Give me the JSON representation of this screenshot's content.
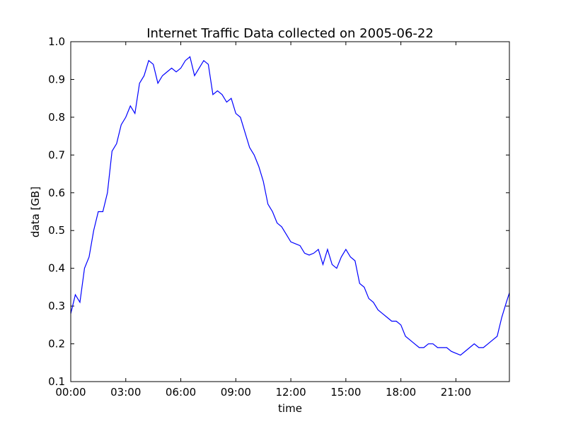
{
  "chart_data": {
    "type": "line",
    "title": "Internet Traffic Data collected on 2005-06-22",
    "xlabel": "time",
    "ylabel": "data [GB]",
    "x": [
      "00:00",
      "00:15",
      "00:30",
      "00:45",
      "01:00",
      "01:15",
      "01:30",
      "01:45",
      "02:00",
      "02:15",
      "02:30",
      "02:45",
      "03:00",
      "03:15",
      "03:30",
      "03:45",
      "04:00",
      "04:15",
      "04:30",
      "04:45",
      "05:00",
      "05:15",
      "05:30",
      "05:45",
      "06:00",
      "06:15",
      "06:30",
      "06:45",
      "07:00",
      "07:15",
      "07:30",
      "07:45",
      "08:00",
      "08:15",
      "08:30",
      "08:45",
      "09:00",
      "09:15",
      "09:30",
      "09:45",
      "10:00",
      "10:15",
      "10:30",
      "10:45",
      "11:00",
      "11:15",
      "11:30",
      "11:45",
      "12:00",
      "12:15",
      "12:30",
      "12:45",
      "13:00",
      "13:15",
      "13:30",
      "13:45",
      "14:00",
      "14:15",
      "14:30",
      "14:45",
      "15:00",
      "15:15",
      "15:30",
      "15:45",
      "16:00",
      "16:15",
      "16:30",
      "16:45",
      "17:00",
      "17:15",
      "17:30",
      "17:45",
      "18:00",
      "18:15",
      "18:30",
      "18:45",
      "19:00",
      "19:15",
      "19:30",
      "19:45",
      "20:00",
      "20:15",
      "20:30",
      "20:45",
      "21:00",
      "21:15",
      "21:30",
      "21:45",
      "22:00",
      "22:15",
      "22:30",
      "22:45",
      "23:00",
      "23:15",
      "23:30",
      "23:45",
      "23:55"
    ],
    "values": [
      0.28,
      0.33,
      0.31,
      0.4,
      0.43,
      0.5,
      0.55,
      0.55,
      0.6,
      0.71,
      0.73,
      0.78,
      0.8,
      0.83,
      0.81,
      0.89,
      0.91,
      0.95,
      0.94,
      0.89,
      0.91,
      0.92,
      0.93,
      0.92,
      0.93,
      0.95,
      0.96,
      0.91,
      0.93,
      0.95,
      0.94,
      0.86,
      0.87,
      0.86,
      0.84,
      0.85,
      0.81,
      0.8,
      0.76,
      0.72,
      0.7,
      0.67,
      0.63,
      0.57,
      0.55,
      0.52,
      0.51,
      0.49,
      0.47,
      0.465,
      0.46,
      0.44,
      0.435,
      0.44,
      0.45,
      0.41,
      0.45,
      0.41,
      0.4,
      0.43,
      0.45,
      0.43,
      0.42,
      0.36,
      0.35,
      0.32,
      0.31,
      0.29,
      0.28,
      0.27,
      0.26,
      0.26,
      0.25,
      0.22,
      0.21,
      0.2,
      0.19,
      0.19,
      0.2,
      0.2,
      0.19,
      0.19,
      0.19,
      0.18,
      0.175,
      0.17,
      0.18,
      0.19,
      0.2,
      0.19,
      0.19,
      0.2,
      0.21,
      0.22,
      0.27,
      0.31,
      0.335
    ],
    "color": "#0000ff",
    "xlim": [
      "00:00",
      "23:55"
    ],
    "xticks": [
      "00:00",
      "03:00",
      "06:00",
      "09:00",
      "12:00",
      "15:00",
      "18:00",
      "21:00"
    ],
    "ylim": [
      0.1,
      1.0
    ],
    "yticks": [
      0.1,
      0.2,
      0.3,
      0.4,
      0.5,
      0.6,
      0.7,
      0.8,
      0.9,
      {
        "value": 1.0,
        "label": "1.0"
      }
    ]
  }
}
